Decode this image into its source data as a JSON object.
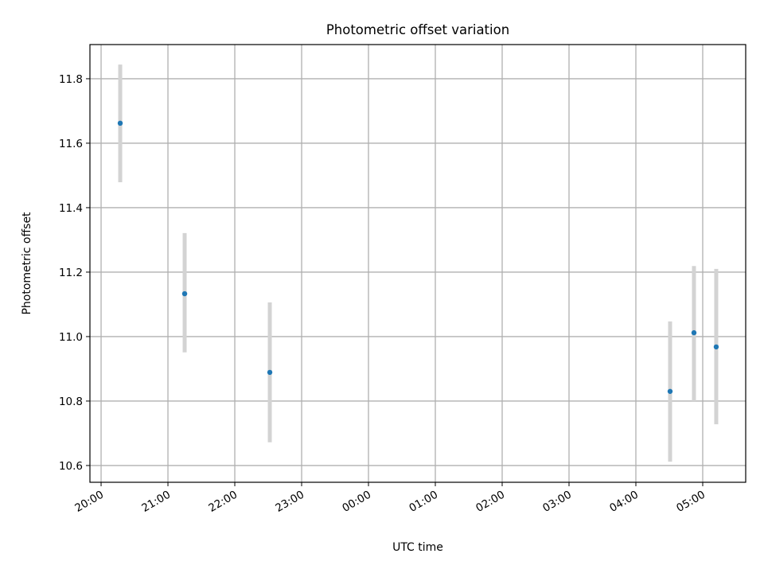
{
  "chart_data": {
    "type": "scatter",
    "title": "Photometric offset variation",
    "xlabel": "UTC time",
    "ylabel": "Photometric offset",
    "grid": true,
    "xlim_hours_since_20": [
      -0.167,
      9.643
    ],
    "ylim": [
      10.548,
      11.906
    ],
    "xticks": [
      {
        "h": 0,
        "label": "20:00"
      },
      {
        "h": 1,
        "label": "21:00"
      },
      {
        "h": 2,
        "label": "22:00"
      },
      {
        "h": 3,
        "label": "23:00"
      },
      {
        "h": 4,
        "label": "00:00"
      },
      {
        "h": 5,
        "label": "01:00"
      },
      {
        "h": 6,
        "label": "02:00"
      },
      {
        "h": 7,
        "label": "03:00"
      },
      {
        "h": 8,
        "label": "04:00"
      },
      {
        "h": 9,
        "label": "05:00"
      }
    ],
    "yticks": [
      {
        "v": 10.6,
        "label": "10.6"
      },
      {
        "v": 10.8,
        "label": "10.8"
      },
      {
        "v": 11.0,
        "label": "11.0"
      },
      {
        "v": 11.2,
        "label": "11.2"
      },
      {
        "v": 11.4,
        "label": "11.4"
      },
      {
        "v": 11.6,
        "label": "11.6"
      },
      {
        "v": 11.8,
        "label": "11.8"
      }
    ],
    "points": [
      {
        "time": "20:17",
        "h": 0.286,
        "y": 11.662,
        "low": 11.479,
        "high": 11.844
      },
      {
        "time": "21:15",
        "h": 1.25,
        "y": 11.133,
        "low": 10.951,
        "high": 11.321
      },
      {
        "time": "22:31",
        "h": 2.524,
        "y": 10.889,
        "low": 10.672,
        "high": 11.106
      },
      {
        "time": "04:31",
        "h": 8.512,
        "y": 10.83,
        "low": 10.612,
        "high": 11.047
      },
      {
        "time": "04:52",
        "h": 8.869,
        "y": 11.012,
        "low": 10.8,
        "high": 11.219
      },
      {
        "time": "05:12",
        "h": 9.202,
        "y": 10.968,
        "low": 10.728,
        "high": 11.21
      }
    ],
    "colors": {
      "point": "#1f77b4",
      "errorbar": "#d3d3d3",
      "grid": "#b0b0b0"
    }
  }
}
